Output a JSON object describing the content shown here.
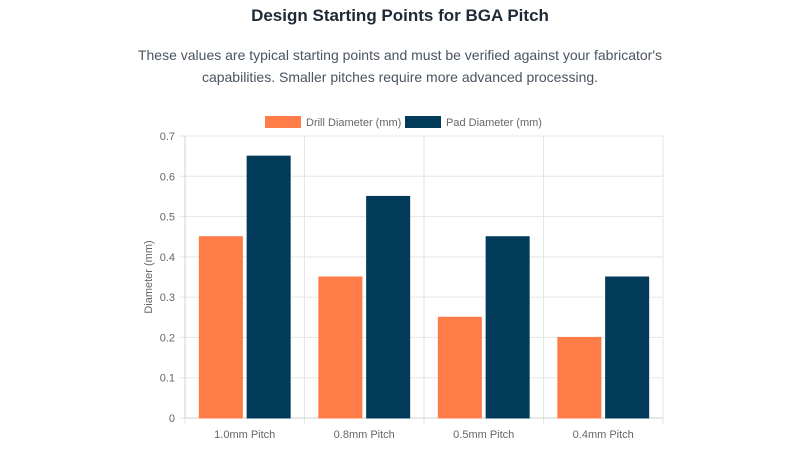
{
  "header": {
    "title": "Design Starting Points for BGA Pitch",
    "subtitle": "These values are typical starting points and must be verified against your fabricator's capabilities. Smaller pitches require more advanced processing."
  },
  "chart_data": {
    "type": "bar",
    "title": "",
    "xlabel": "",
    "ylabel": "Diameter (mm)",
    "ylim": [
      0,
      0.7
    ],
    "yticks": [
      "0",
      "0.1",
      "0.2",
      "0.3",
      "0.4",
      "0.5",
      "0.6",
      "0.7"
    ],
    "grid": true,
    "legend_position": "top",
    "categories": [
      "1.0mm Pitch",
      "0.8mm Pitch",
      "0.5mm Pitch",
      "0.4mm Pitch"
    ],
    "series": [
      {
        "name": "Drill Diameter (mm)",
        "color": "#FF7B47",
        "values": [
          0.45,
          0.35,
          0.25,
          0.2
        ]
      },
      {
        "name": "Pad Diameter (mm)",
        "color": "#023B59",
        "values": [
          0.65,
          0.55,
          0.45,
          0.35
        ]
      }
    ]
  }
}
